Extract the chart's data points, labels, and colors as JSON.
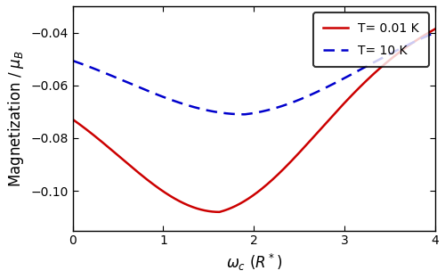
{
  "xlim": [
    0,
    4
  ],
  "ylim": [
    -0.115,
    -0.03
  ],
  "xlabel": "$\\omega_c$ $(R^*)$",
  "ylabel": "Magnetization / $\\mu_B$",
  "yticks": [
    -0.04,
    -0.06,
    -0.08,
    -0.1
  ],
  "xticks": [
    0,
    1,
    2,
    3,
    4
  ],
  "line1_color": "#cc0000",
  "line2_color": "#0000cc",
  "line1_label": "T= 0.01 K",
  "line2_label": "T= 10 K",
  "legend_fontsize": 10,
  "axis_label_fontsize": 12,
  "tick_fontsize": 10,
  "background_color": "#ffffff",
  "figsize": [
    5.0,
    3.13
  ],
  "dpi": 100
}
